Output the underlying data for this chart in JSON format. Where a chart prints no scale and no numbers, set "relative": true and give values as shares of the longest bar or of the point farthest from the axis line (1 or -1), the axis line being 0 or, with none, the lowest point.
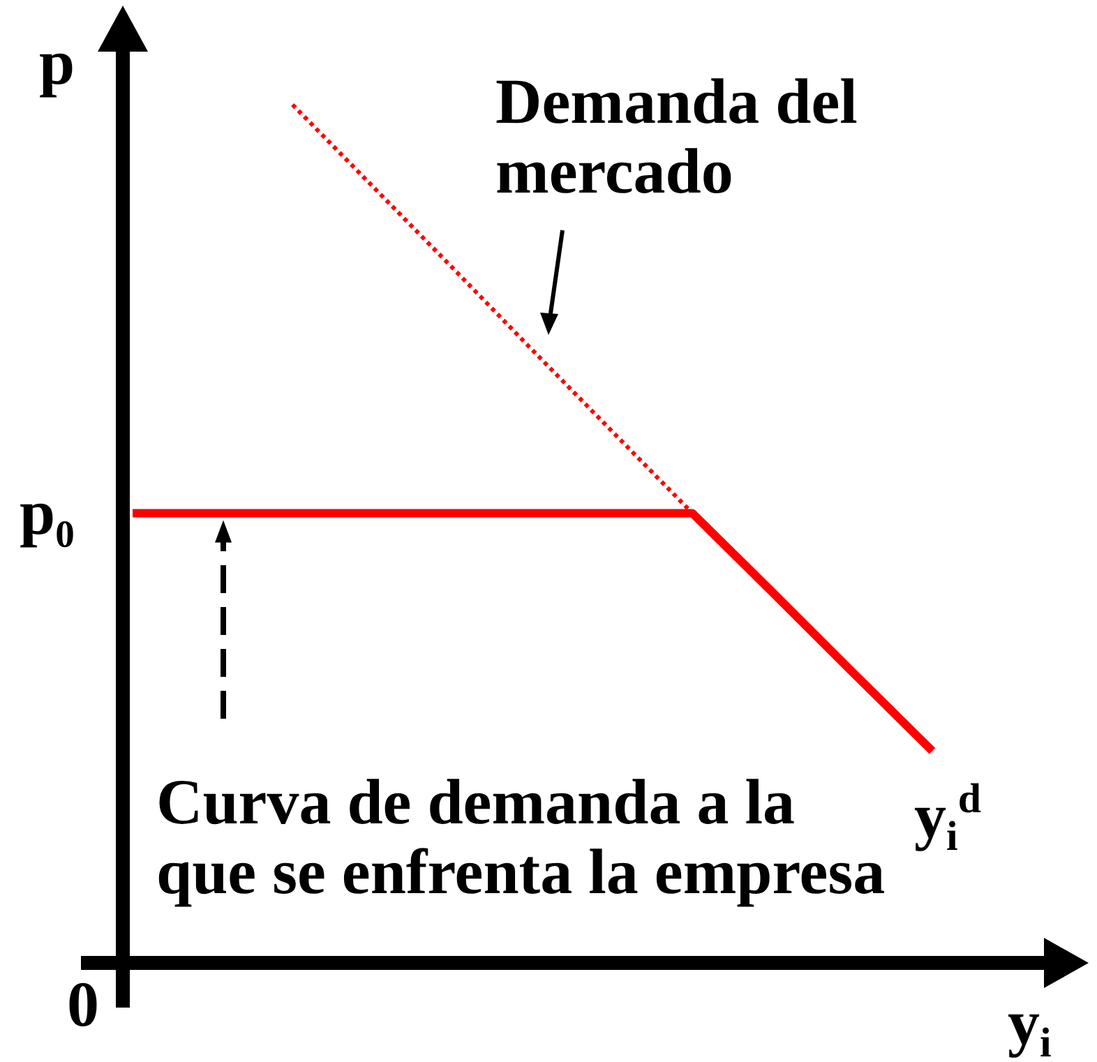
{
  "chart_data": {
    "type": "line",
    "relative": true,
    "xlabel": "y$_{i}$",
    "ylabel": "p",
    "categories": [
      null,
      null,
      null,
      null,
      null,
      null,
      null,
      null,
      null,
      null,
      null
    ],
    "series": [
      {
        "color": "#ff0000",
        "values": [
          0.524,
          0.524,
          0.524,
          0.524,
          0.524,
          0.524,
          0.524,
          0.524,
          0.432,
          0.339,
          0.247
        ],
        "line_style": "solid"
      },
      {
        "color": "#ff0000",
        "values": [
          null,
          null,
          1,
          0.905,
          0.81,
          0.714,
          0.619,
          0.524,
          null,
          null,
          null
        ],
        "line_style": "dotted"
      }
    ],
    "annotations": [
      "Demanda del mercado",
      "Curva de demanda a la que se enfrenta la empresa",
      "y$_{i}$$^{d}$",
      "p₀",
      "0"
    ]
  }
}
